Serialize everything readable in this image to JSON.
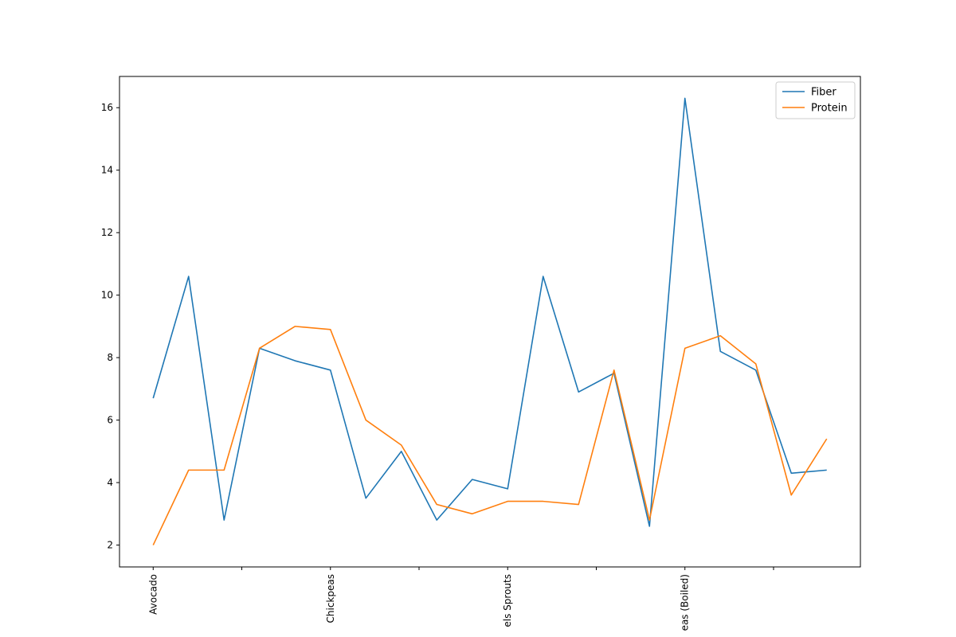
{
  "chart_data": {
    "type": "line",
    "categories": [
      "Avocado",
      "",
      "",
      "",
      "",
      "Chickpeas",
      "",
      "",
      "",
      "",
      "Brussels Sprouts",
      "",
      "",
      "",
      "",
      "Split Peas (Boiled)",
      "",
      "",
      "",
      ""
    ],
    "visible_x_tick_labels": [
      {
        "index": 0,
        "label": "Avocado"
      },
      {
        "index": 5,
        "label": "Chickpeas"
      },
      {
        "index": 10,
        "label": "els Sprouts"
      },
      {
        "index": 15,
        "label": "eas (Boiled)"
      }
    ],
    "x_tick_indices": [
      0,
      2.5,
      5,
      7.5,
      10,
      12.5,
      15,
      17.5
    ],
    "series": [
      {
        "name": "Fiber",
        "color": "#1f77b4",
        "values": [
          6.7,
          10.6,
          2.8,
          8.3,
          7.9,
          7.6,
          3.5,
          5.0,
          2.8,
          4.1,
          3.8,
          10.6,
          6.9,
          7.5,
          2.6,
          16.3,
          8.2,
          7.6,
          4.3,
          4.4
        ]
      },
      {
        "name": "Protein",
        "color": "#ff7f0e",
        "values": [
          2.0,
          4.4,
          4.4,
          8.3,
          9.0,
          8.9,
          6.0,
          5.2,
          3.3,
          3.0,
          3.4,
          3.4,
          3.3,
          7.6,
          2.8,
          8.3,
          8.7,
          7.8,
          3.6,
          5.4
        ]
      }
    ],
    "y_ticks": [
      2,
      4,
      6,
      8,
      10,
      12,
      14,
      16
    ],
    "ylim": [
      1.3,
      17.0
    ],
    "xlim": [
      -0.95,
      19.95
    ],
    "legend_position": "top-right",
    "grid": false,
    "title": "",
    "xlabel": "",
    "ylabel": ""
  }
}
